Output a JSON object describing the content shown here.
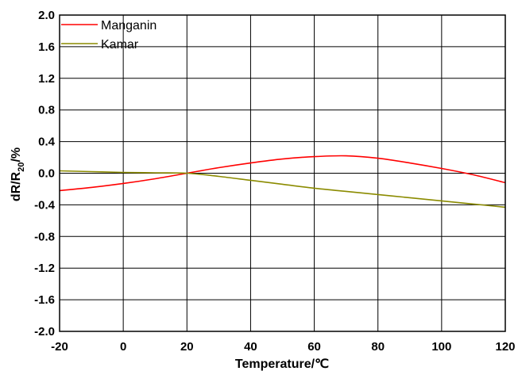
{
  "chart_data": {
    "type": "line",
    "xlabel": "Temperature/℃",
    "ylabel": {
      "prefix": "dR/R",
      "subscript": "20",
      "suffix": "/%"
    },
    "xlim": [
      -20,
      120
    ],
    "ylim": [
      -2.0,
      2.0
    ],
    "x_ticks": [
      "-20",
      "0",
      "20",
      "40",
      "60",
      "80",
      "100",
      "120"
    ],
    "y_ticks": [
      "2.0",
      "1.6",
      "1.2",
      "0.8",
      "0.4",
      "0.0",
      "-0.4",
      "-0.8",
      "-1.2",
      "-1.6",
      "-2.0"
    ],
    "grid": true,
    "legend_position": "top-left",
    "series": [
      {
        "name": "Manganin",
        "color": "#ff0000",
        "x": [
          -20,
          -10,
          0,
          10,
          20,
          30,
          40,
          50,
          60,
          70,
          80,
          90,
          100,
          110,
          120
        ],
        "y": [
          -0.22,
          -0.18,
          -0.13,
          -0.07,
          0.0,
          0.07,
          0.13,
          0.18,
          0.21,
          0.22,
          0.19,
          0.13,
          0.06,
          -0.02,
          -0.12
        ]
      },
      {
        "name": "Kamar",
        "color": "#8b8b00",
        "x": [
          -20,
          -10,
          0,
          10,
          20,
          30,
          40,
          50,
          60,
          70,
          80,
          90,
          100,
          110,
          120
        ],
        "y": [
          0.03,
          0.02,
          0.01,
          0.005,
          0.0,
          -0.04,
          -0.09,
          -0.14,
          -0.19,
          -0.23,
          -0.27,
          -0.31,
          -0.35,
          -0.39,
          -0.43
        ]
      }
    ]
  }
}
